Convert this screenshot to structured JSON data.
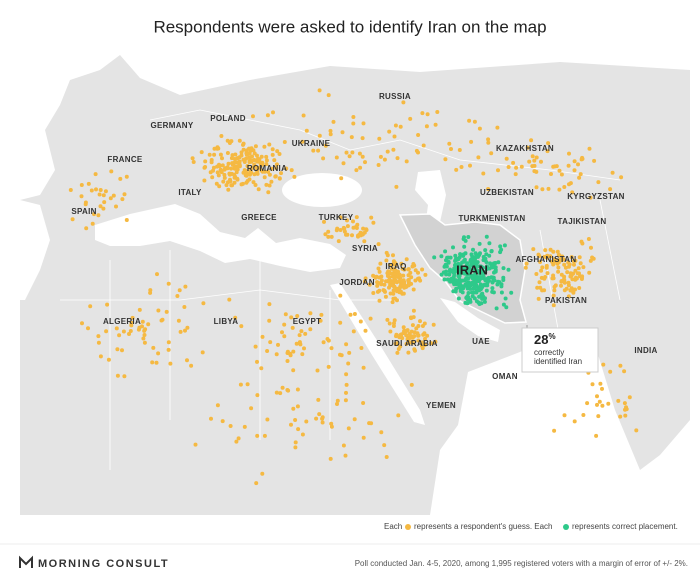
{
  "title": "Respondents were asked to identify Iran on the map",
  "labels": [
    "RUSSIA",
    "POLAND",
    "GERMANY",
    "UKRAINE",
    "KAZAKHSTAN",
    "FRANCE",
    "ROMANIA",
    "UZBEKISTAN",
    "ITALY",
    "KYRGYZSTAN",
    "SPAIN",
    "GREECE",
    "TURKEY",
    "TURKMENISTAN",
    "TAJIKISTAN",
    "SYRIA",
    "AFGHANISTAN",
    "IRAQ",
    "JORDAN",
    "PAKISTAN",
    "ALGERIA",
    "LIBYA",
    "EGYPT",
    "SAUDI ARABIA",
    "UAE",
    "INDIA",
    "OMAN",
    "YEMEN"
  ],
  "highlight": "IRAN",
  "callout": {
    "value": 28,
    "unit": "%",
    "lines": [
      "correctly",
      "identified Iran"
    ]
  },
  "legend": {
    "each": "Each",
    "guess": "represents a respondent's guess. Each",
    "correct": "represents correct placement.",
    "guess_color": "#f5b942",
    "correct_color": "#2ec98a"
  },
  "footer": {
    "brand": "MORNING CONSULT",
    "note": "Poll conducted Jan. 4-5, 2020, among 1,995 registered voters with a margin of error of +/- 2%."
  }
}
